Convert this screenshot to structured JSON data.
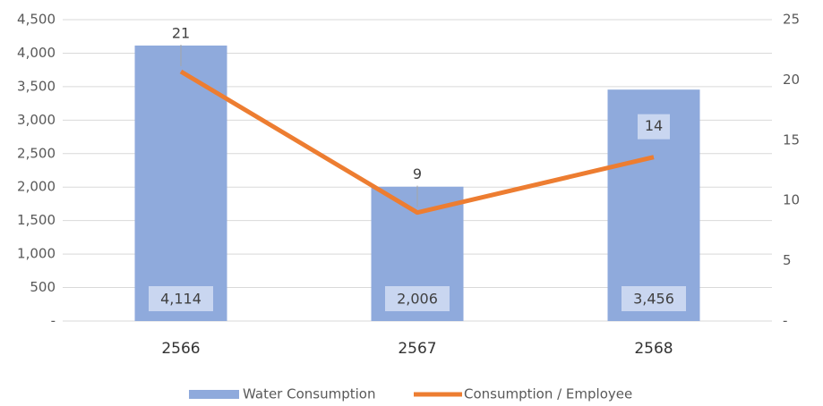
{
  "chart_data": {
    "type": "combo",
    "categories": [
      "2566",
      "2567",
      "2568"
    ],
    "series": [
      {
        "name": "Water Consumption",
        "type": "bar",
        "color": "#8faadc",
        "values": [
          4114,
          2006,
          3456
        ],
        "value_labels": [
          "4,114",
          "2,006",
          "3,456"
        ]
      },
      {
        "name": "Consumption / Employee",
        "type": "line",
        "axis": "y2",
        "color": "#ed7d31",
        "values": [
          20.7,
          9.0,
          13.6
        ],
        "value_labels": [
          "21",
          "9",
          "14"
        ]
      }
    ],
    "ylim": [
      0,
      4500
    ],
    "yticks": [
      {
        "value": 0,
        "label": "-"
      },
      {
        "value": 500,
        "label": "500"
      },
      {
        "value": 1000,
        "label": "1,000"
      },
      {
        "value": 1500,
        "label": "1,500"
      },
      {
        "value": 2000,
        "label": "2,000"
      },
      {
        "value": 2500,
        "label": "2,500"
      },
      {
        "value": 3000,
        "label": "3,000"
      },
      {
        "value": 3500,
        "label": "3,500"
      },
      {
        "value": 4000,
        "label": "4,000"
      },
      {
        "value": 4500,
        "label": "4,500"
      }
    ],
    "y2lim": [
      0,
      25
    ],
    "y2ticks": [
      {
        "value": 0,
        "label": "-"
      },
      5,
      10,
      15,
      20,
      25
    ],
    "grid": true,
    "legend": "bottom"
  }
}
